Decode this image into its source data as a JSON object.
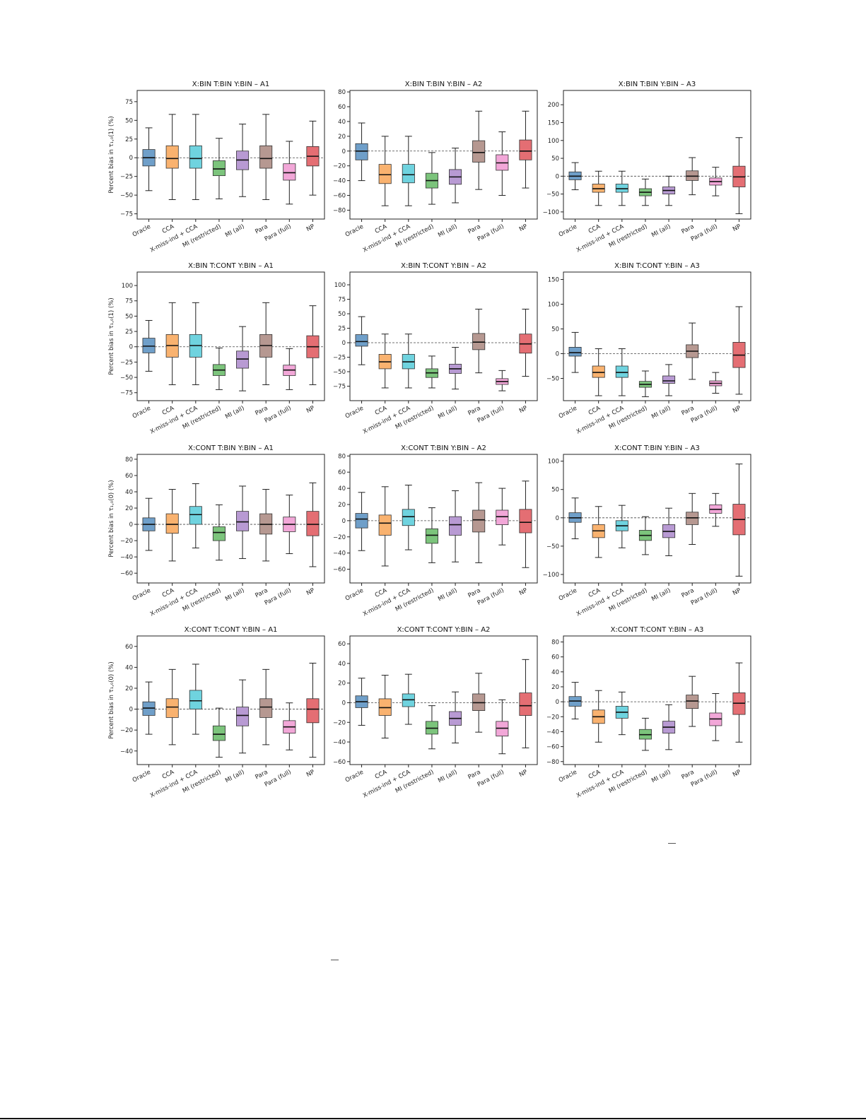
{
  "colors": [
    "#6f9fc9",
    "#f9b26f",
    "#6fd3df",
    "#7cc47c",
    "#b89ad3",
    "#b69891",
    "#f2a7d8",
    "#e46e73"
  ],
  "chart_data": [
    {
      "type": "box",
      "title": "X:BIN T:BIN Y:BIN – A1",
      "ylabel": "Percent bias in τ₁,₀(1) (%)",
      "ylim": [
        -82,
        90
      ],
      "yticks": [
        -75,
        -50,
        -25,
        0,
        25,
        50,
        75
      ],
      "categories": [
        "Oracle",
        "CCA",
        "X-miss-ind + CCA",
        "MI (restricted)",
        "MI (all)",
        "Para",
        "Para (full)",
        "NP"
      ],
      "boxes": [
        [
          -44,
          -11,
          0,
          11,
          40
        ],
        [
          -56,
          -14,
          -1,
          16,
          58
        ],
        [
          -56,
          -14,
          -1,
          16,
          58
        ],
        [
          -55,
          -24,
          -15,
          -4,
          26
        ],
        [
          -52,
          -16,
          -3,
          9,
          45
        ],
        [
          -56,
          -14,
          -1,
          16,
          58
        ],
        [
          -62,
          -30,
          -20,
          -8,
          22
        ],
        [
          -50,
          -11,
          2,
          15,
          49
        ]
      ]
    },
    {
      "type": "box",
      "title": "X:BIN T:BIN Y:BIN – A2",
      "ylabel": "",
      "ylim": [
        -92,
        82
      ],
      "yticks": [
        -80,
        -60,
        -40,
        -20,
        0,
        20,
        40,
        60,
        80
      ],
      "categories": [
        "Oracle",
        "CCA",
        "X-miss-ind + CCA",
        "MI (restricted)",
        "MI (all)",
        "Para",
        "Para (full)",
        "NP"
      ],
      "boxes": [
        [
          -40,
          -12,
          0,
          10,
          38
        ],
        [
          -74,
          -44,
          -32,
          -18,
          20
        ],
        [
          -74,
          -43,
          -32,
          -18,
          20
        ],
        [
          -72,
          -50,
          -40,
          -30,
          -2
        ],
        [
          -70,
          -45,
          -35,
          -25,
          4
        ],
        [
          -52,
          -15,
          -2,
          14,
          54
        ],
        [
          -60,
          -26,
          -16,
          -5,
          26
        ],
        [
          -50,
          -12,
          0,
          15,
          54
        ]
      ]
    },
    {
      "type": "box",
      "title": "X:BIN T:BIN Y:BIN – A3",
      "ylabel": "",
      "ylim": [
        -120,
        240
      ],
      "yticks": [
        -100,
        -50,
        0,
        50,
        100,
        150,
        200
      ],
      "categories": [
        "Oracle",
        "CCA",
        "X-miss-ind + CCA",
        "MI (restricted)",
        "MI (all)",
        "Para",
        "Para (full)",
        "NP"
      ],
      "boxes": [
        [
          -38,
          -10,
          0,
          12,
          38
        ],
        [
          -82,
          -45,
          -35,
          -22,
          14
        ],
        [
          -82,
          -45,
          -35,
          -22,
          14
        ],
        [
          -82,
          -55,
          -45,
          -35,
          -8
        ],
        [
          -82,
          -50,
          -40,
          -30,
          0
        ],
        [
          -52,
          -12,
          0,
          15,
          52
        ],
        [
          -55,
          -25,
          -15,
          -5,
          25
        ],
        [
          -105,
          -30,
          -2,
          28,
          108
        ]
      ]
    },
    {
      "type": "box",
      "title": "X:BIN T:CONT Y:BIN – A1",
      "ylabel": "Percent bias in τ₁,₀(1) (%)",
      "ylim": [
        -88,
        122
      ],
      "yticks": [
        -75,
        -50,
        -25,
        0,
        25,
        50,
        75,
        100
      ],
      "categories": [
        "Oracle",
        "CCA",
        "X-miss-ind + CCA",
        "MI (restricted)",
        "MI (all)",
        "Para",
        "Para (full)",
        "NP"
      ],
      "boxes": [
        [
          -40,
          -10,
          1,
          14,
          43
        ],
        [
          -62,
          -17,
          2,
          20,
          72
        ],
        [
          -62,
          -17,
          2,
          20,
          72
        ],
        [
          -70,
          -47,
          -38,
          -29,
          -2
        ],
        [
          -72,
          -35,
          -20,
          -7,
          33
        ],
        [
          -62,
          -17,
          2,
          20,
          72
        ],
        [
          -70,
          -47,
          -38,
          -30,
          -3
        ],
        [
          -62,
          -18,
          0,
          18,
          67
        ]
      ]
    },
    {
      "type": "box",
      "title": "X:BIN T:CONT Y:BIN – A2",
      "ylabel": "",
      "ylim": [
        -100,
        122
      ],
      "yticks": [
        -75,
        -50,
        -25,
        0,
        25,
        50,
        75,
        100
      ],
      "categories": [
        "Oracle",
        "CCA",
        "X-miss-ind + CCA",
        "MI (restricted)",
        "MI (all)",
        "Para",
        "Para (full)",
        "NP"
      ],
      "boxes": [
        [
          -38,
          -6,
          2,
          14,
          45
        ],
        [
          -78,
          -45,
          -33,
          -20,
          15
        ],
        [
          -78,
          -45,
          -33,
          -20,
          15
        ],
        [
          -78,
          -60,
          -52,
          -45,
          -23
        ],
        [
          -80,
          -53,
          -45,
          -37,
          -8
        ],
        [
          -52,
          -12,
          1,
          16,
          58
        ],
        [
          -83,
          -72,
          -67,
          -62,
          -48
        ],
        [
          -58,
          -18,
          -2,
          15,
          58
        ]
      ]
    },
    {
      "type": "box",
      "title": "X:BIN T:CONT Y:BIN – A3",
      "ylabel": "",
      "ylim": [
        -95,
        165
      ],
      "yticks": [
        -50,
        0,
        50,
        100,
        150
      ],
      "categories": [
        "Oracle",
        "CCA",
        "X-miss-ind + CCA",
        "MI (restricted)",
        "MI (all)",
        "Para",
        "Para (full)",
        "NP"
      ],
      "boxes": [
        [
          -38,
          -5,
          2,
          13,
          43
        ],
        [
          -85,
          -48,
          -38,
          -25,
          10
        ],
        [
          -85,
          -48,
          -38,
          -25,
          10
        ],
        [
          -87,
          -68,
          -62,
          -56,
          -35
        ],
        [
          -85,
          -60,
          -55,
          -45,
          -22
        ],
        [
          -52,
          -8,
          5,
          18,
          62
        ],
        [
          -80,
          -65,
          -60,
          -55,
          -38
        ],
        [
          -82,
          -28,
          -3,
          23,
          95
        ]
      ]
    },
    {
      "type": "box",
      "title": "X:CONT T:BIN Y:BIN – A1",
      "ylabel": "Percent bias in τ₁,₀(0) (%)",
      "ylim": [
        -72,
        86
      ],
      "yticks": [
        -60,
        -40,
        -20,
        0,
        20,
        40,
        60,
        80
      ],
      "categories": [
        "Oracle",
        "CCA",
        "X-miss-ind + CCA",
        "MI (restricted)",
        "MI (all)",
        "Para",
        "Para (full)",
        "NP"
      ],
      "boxes": [
        [
          -32,
          -8,
          0,
          8,
          32
        ],
        [
          -45,
          -11,
          0,
          13,
          43
        ],
        [
          -29,
          0,
          12,
          22,
          50
        ],
        [
          -44,
          -20,
          -10,
          -3,
          24
        ],
        [
          -42,
          -8,
          3,
          16,
          47
        ],
        [
          -45,
          -12,
          0,
          13,
          43
        ],
        [
          -36,
          -9,
          0,
          9,
          36
        ],
        [
          -52,
          -14,
          0,
          16,
          51
        ]
      ]
    },
    {
      "type": "box",
      "title": "X:CONT T:BIN Y:BIN – A2",
      "ylabel": "",
      "ylim": [
        -77,
        82
      ],
      "yticks": [
        -60,
        -40,
        -20,
        0,
        20,
        40,
        60,
        80
      ],
      "categories": [
        "Oracle",
        "CCA",
        "X-miss-ind + CCA",
        "MI (restricted)",
        "MI (all)",
        "Para",
        "Para (full)",
        "NP"
      ],
      "boxes": [
        [
          -37,
          -9,
          2,
          9,
          35
        ],
        [
          -56,
          -18,
          -3,
          7,
          42
        ],
        [
          -36,
          -6,
          5,
          14,
          44
        ],
        [
          -52,
          -28,
          -18,
          -10,
          16
        ],
        [
          -51,
          -18,
          -5,
          5,
          37
        ],
        [
          -52,
          -14,
          1,
          13,
          47
        ],
        [
          -30,
          -5,
          5,
          13,
          40
        ],
        [
          -58,
          -15,
          -2,
          14,
          49
        ]
      ]
    },
    {
      "type": "box",
      "title": "X:CONT T:BIN Y:BIN – A3",
      "ylabel": "",
      "ylim": [
        -115,
        112
      ],
      "yticks": [
        -100,
        -50,
        0,
        50,
        100
      ],
      "categories": [
        "Oracle",
        "CCA",
        "X-miss-ind + CCA",
        "MI (restricted)",
        "MI (all)",
        "Para",
        "Para (full)",
        "NP"
      ],
      "boxes": [
        [
          -37,
          -8,
          0,
          9,
          35
        ],
        [
          -70,
          -35,
          -23,
          -12,
          20
        ],
        [
          -53,
          -23,
          -14,
          -5,
          22
        ],
        [
          -65,
          -40,
          -31,
          -22,
          2
        ],
        [
          -67,
          -35,
          -24,
          -12,
          17
        ],
        [
          -47,
          -12,
          0,
          10,
          43
        ],
        [
          -15,
          8,
          15,
          23,
          43
        ],
        [
          -103,
          -30,
          -3,
          24,
          95
        ]
      ]
    },
    {
      "type": "box",
      "title": "X:CONT T:CONT Y:BIN – A1",
      "ylabel": "Percent bias in τ₁,₀(0) (%)",
      "ylim": [
        -53,
        70
      ],
      "yticks": [
        -40,
        -20,
        0,
        20,
        40,
        60
      ],
      "categories": [
        "Oracle",
        "CCA",
        "X-miss-ind + CCA",
        "MI (restricted)",
        "MI (all)",
        "Para",
        "Para (full)",
        "NP"
      ],
      "boxes": [
        [
          -24,
          -6,
          1,
          7,
          26
        ],
        [
          -34,
          -8,
          2,
          10,
          38
        ],
        [
          -24,
          0,
          8,
          18,
          43
        ],
        [
          -46,
          -30,
          -24,
          -16,
          1
        ],
        [
          -42,
          -16,
          -6,
          2,
          28
        ],
        [
          -34,
          -8,
          2,
          10,
          38
        ],
        [
          -39,
          -23,
          -17,
          -11,
          6
        ],
        [
          -46,
          -13,
          0,
          10,
          44
        ]
      ]
    },
    {
      "type": "box",
      "title": "X:CONT T:CONT Y:BIN – A2",
      "ylabel": "",
      "ylim": [
        -63,
        68
      ],
      "yticks": [
        -60,
        -40,
        -20,
        0,
        20,
        40,
        60
      ],
      "categories": [
        "Oracle",
        "CCA",
        "X-miss-ind + CCA",
        "MI (restricted)",
        "MI (all)",
        "Para",
        "Para (full)",
        "NP"
      ],
      "boxes": [
        [
          -23,
          -5,
          1,
          7,
          25
        ],
        [
          -36,
          -13,
          -5,
          4,
          28
        ],
        [
          -22,
          -4,
          3,
          9,
          29
        ],
        [
          -47,
          -32,
          -26,
          -19,
          -3
        ],
        [
          -41,
          -23,
          -16,
          -9,
          11
        ],
        [
          -30,
          -8,
          0,
          9,
          30
        ],
        [
          -52,
          -34,
          -26,
          -19,
          3
        ],
        [
          -46,
          -13,
          -3,
          10,
          44
        ]
      ]
    },
    {
      "type": "box",
      "title": "X:CONT T:CONT Y:BIN – A3",
      "ylabel": "",
      "ylim": [
        -84,
        88
      ],
      "yticks": [
        -80,
        -60,
        -40,
        -20,
        0,
        20,
        40,
        60,
        80
      ],
      "categories": [
        "Oracle",
        "CCA",
        "X-miss-ind + CCA",
        "MI (restricted)",
        "MI (all)",
        "Para",
        "Para (full)",
        "NP"
      ],
      "boxes": [
        [
          -23,
          -6,
          1,
          7,
          26
        ],
        [
          -54,
          -29,
          -20,
          -11,
          15
        ],
        [
          -44,
          -22,
          -14,
          -6,
          13
        ],
        [
          -65,
          -50,
          -44,
          -37,
          -22
        ],
        [
          -64,
          -42,
          -34,
          -26,
          -4
        ],
        [
          -33,
          -9,
          1,
          9,
          34
        ],
        [
          -52,
          -32,
          -23,
          -15,
          11
        ],
        [
          -54,
          -17,
          -2,
          12,
          52
        ]
      ]
    }
  ]
}
